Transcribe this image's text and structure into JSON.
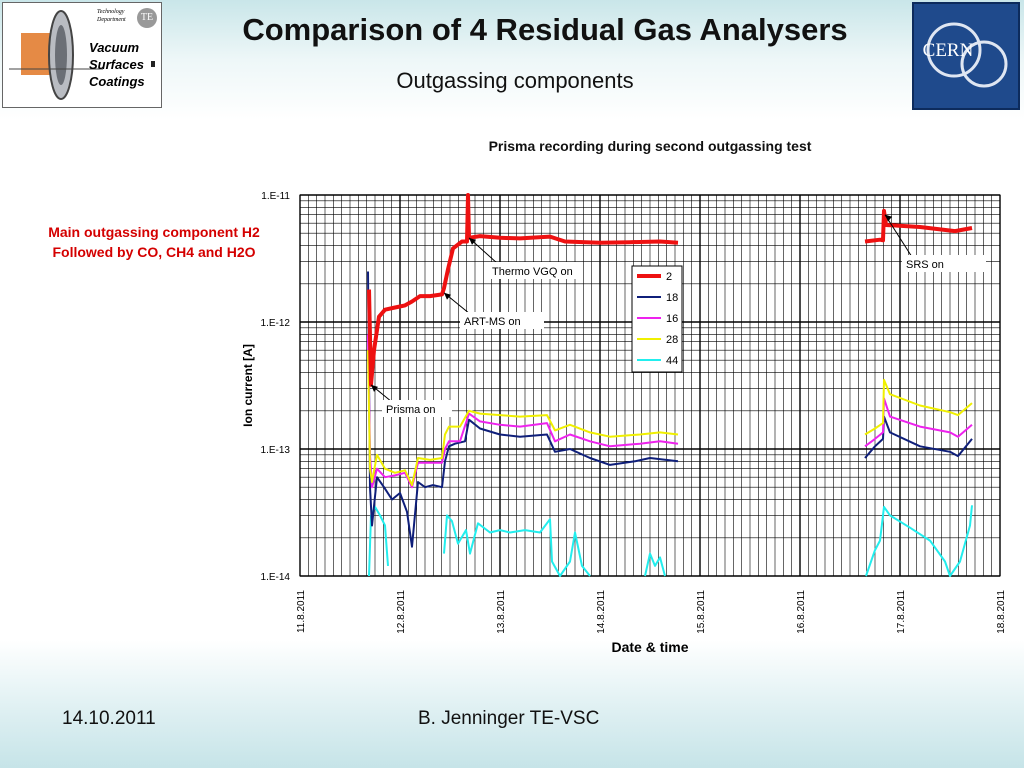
{
  "slide": {
    "title": "Comparison of 4 Residual Gas Analysers",
    "subtitle": "Outgassing components",
    "note_line1": "Main outgassing component H2",
    "note_line2": "Followed by CO, CH4 and H2O",
    "footer_date": "14.10.2011",
    "footer_author": "B. Jenninger TE-VSC"
  },
  "logos": {
    "left_text": [
      "Vacuum",
      "Surfaces",
      "Coatings"
    ],
    "left_small": [
      "Technology",
      "Department"
    ],
    "left_badge": "TE",
    "right_text": "CERN"
  },
  "colors": {
    "2": "#ee1111",
    "18": "#0f1f7a",
    "16": "#ee22ee",
    "28": "#f0f000",
    "44": "#22eeee",
    "note": "#d40000"
  },
  "chart_data": {
    "type": "line",
    "title": "Prisma recording during second outgassing test",
    "xlabel": "Date & time",
    "ylabel": "Ion current [A]",
    "yscale": "log",
    "ylim": [
      1e-14,
      1e-11
    ],
    "xlim": [
      "2011-08-11",
      "2011-08-18"
    ],
    "x_unit": "days",
    "x_ticks": [
      "11.8.2011",
      "12.8.2011",
      "13.8.2011",
      "14.8.2011",
      "15.8.2011",
      "16.8.2011",
      "17.8.2011",
      "18.8.2011"
    ],
    "y_ticks": [
      "1.E-11",
      "1.E-12",
      "1.E-13",
      "1.E-14"
    ],
    "grid": true,
    "legend_position": "right",
    "series": [
      {
        "name": "2",
        "segments": [
          [
            [
              11.69,
              1.8e-12
            ],
            [
              11.71,
              3.2e-13
            ],
            [
              11.74,
              6e-13
            ],
            [
              11.79,
              1.1e-12
            ],
            [
              11.85,
              1.25e-12
            ],
            [
              11.95,
              1.3e-12
            ],
            [
              12.05,
              1.35e-12
            ],
            [
              12.12,
              1.45e-12
            ],
            [
              12.2,
              1.6e-12
            ],
            [
              12.3,
              1.6e-12
            ],
            [
              12.42,
              1.65e-12
            ],
            [
              12.44,
              1.85e-12
            ],
            [
              12.48,
              2.6e-12
            ],
            [
              12.53,
              3.8e-12
            ],
            [
              12.62,
              4.3e-12
            ],
            [
              12.67,
              4.3e-12
            ],
            [
              12.68,
              1e-11
            ],
            [
              12.69,
              4.6e-12
            ],
            [
              12.8,
              4.75e-12
            ],
            [
              13.0,
              4.6e-12
            ],
            [
              13.2,
              4.55e-12
            ],
            [
              13.5,
              4.7e-12
            ],
            [
              13.65,
              4.3e-12
            ],
            [
              14.0,
              4.2e-12
            ],
            [
              14.3,
              4.25e-12
            ],
            [
              14.6,
              4.3e-12
            ],
            [
              14.78,
              4.2e-12
            ]
          ],
          [
            [
              16.65,
              4.3e-12
            ],
            [
              16.8,
              4.45e-12
            ],
            [
              16.83,
              4.4e-12
            ],
            [
              16.84,
              7.5e-12
            ],
            [
              16.86,
              5.8e-12
            ],
            [
              17.2,
              5.6e-12
            ],
            [
              17.55,
              5.2e-12
            ],
            [
              17.72,
              5.5e-12
            ]
          ]
        ]
      },
      {
        "name": "18",
        "segments": [
          [
            [
              11.68,
              2.5e-12
            ],
            [
              11.7,
              5e-14
            ],
            [
              11.72,
              2.5e-14
            ],
            [
              11.77,
              6e-14
            ],
            [
              11.84,
              5e-14
            ],
            [
              11.92,
              4e-14
            ],
            [
              12.0,
              4.5e-14
            ],
            [
              12.07,
              3.2e-14
            ],
            [
              12.12,
              1.7e-14
            ],
            [
              12.18,
              5.5e-14
            ],
            [
              12.25,
              5e-14
            ],
            [
              12.33,
              5.2e-14
            ],
            [
              12.42,
              5e-14
            ],
            [
              12.45,
              8e-14
            ],
            [
              12.49,
              1.05e-13
            ],
            [
              12.55,
              1.1e-13
            ],
            [
              12.65,
              1.15e-13
            ],
            [
              12.69,
              1.7e-13
            ],
            [
              12.8,
              1.45e-13
            ],
            [
              13.0,
              1.3e-13
            ],
            [
              13.2,
              1.25e-13
            ],
            [
              13.47,
              1.3e-13
            ],
            [
              13.55,
              9.5e-14
            ],
            [
              13.7,
              1e-13
            ],
            [
              13.9,
              8.5e-14
            ],
            [
              14.1,
              7.5e-14
            ],
            [
              14.35,
              8e-14
            ],
            [
              14.5,
              8.5e-14
            ],
            [
              14.78,
              8e-14
            ]
          ],
          [
            [
              16.65,
              8.5e-14
            ],
            [
              16.75,
              1.05e-13
            ],
            [
              16.83,
              1.2e-13
            ],
            [
              16.84,
              1.8e-13
            ],
            [
              16.9,
              1.35e-13
            ],
            [
              17.2,
              1.05e-13
            ],
            [
              17.5,
              9.5e-14
            ],
            [
              17.58,
              8.8e-14
            ],
            [
              17.72,
              1.2e-13
            ]
          ]
        ]
      },
      {
        "name": "16",
        "segments": [
          [
            [
              11.68,
              8e-13
            ],
            [
              11.7,
              9e-14
            ],
            [
              11.72,
              5e-14
            ],
            [
              11.77,
              7e-14
            ],
            [
              11.85,
              6e-14
            ],
            [
              11.95,
              6.2e-14
            ],
            [
              12.05,
              6.5e-14
            ],
            [
              12.12,
              5e-14
            ],
            [
              12.18,
              7.8e-14
            ],
            [
              12.3,
              7.8e-14
            ],
            [
              12.42,
              7.8e-14
            ],
            [
              12.45,
              1e-13
            ],
            [
              12.49,
              1.15e-13
            ],
            [
              12.6,
              1.15e-13
            ],
            [
              12.69,
              1.9e-13
            ],
            [
              12.8,
              1.65e-13
            ],
            [
              13.0,
              1.55e-13
            ],
            [
              13.2,
              1.5e-13
            ],
            [
              13.47,
              1.6e-13
            ],
            [
              13.55,
              1.15e-13
            ],
            [
              13.7,
              1.3e-13
            ],
            [
              13.9,
              1.15e-13
            ],
            [
              14.1,
              1.05e-13
            ],
            [
              14.4,
              1.1e-13
            ],
            [
              14.6,
              1.15e-13
            ],
            [
              14.78,
              1.1e-13
            ]
          ],
          [
            [
              16.65,
              1.05e-13
            ],
            [
              16.75,
              1.2e-13
            ],
            [
              16.83,
              1.35e-13
            ],
            [
              16.84,
              2.5e-13
            ],
            [
              16.9,
              1.8e-13
            ],
            [
              17.2,
              1.5e-13
            ],
            [
              17.5,
              1.35e-13
            ],
            [
              17.58,
              1.25e-13
            ],
            [
              17.72,
              1.55e-13
            ]
          ]
        ]
      },
      {
        "name": "28",
        "segments": [
          [
            [
              11.68,
              6e-13
            ],
            [
              11.7,
              7e-14
            ],
            [
              11.72,
              5.5e-14
            ],
            [
              11.77,
              9e-14
            ],
            [
              11.85,
              7e-14
            ],
            [
              11.95,
              6.5e-14
            ],
            [
              12.05,
              6.8e-14
            ],
            [
              12.12,
              5.2e-14
            ],
            [
              12.18,
              8.5e-14
            ],
            [
              12.3,
              8.2e-14
            ],
            [
              12.42,
              8.5e-14
            ],
            [
              12.45,
              1.3e-13
            ],
            [
              12.49,
              1.5e-13
            ],
            [
              12.6,
              1.5e-13
            ],
            [
              12.69,
              2e-13
            ],
            [
              12.8,
              1.9e-13
            ],
            [
              13.0,
              1.85e-13
            ],
            [
              13.2,
              1.8e-13
            ],
            [
              13.47,
              1.85e-13
            ],
            [
              13.55,
              1.4e-13
            ],
            [
              13.7,
              1.55e-13
            ],
            [
              13.9,
              1.35e-13
            ],
            [
              14.1,
              1.25e-13
            ],
            [
              14.4,
              1.3e-13
            ],
            [
              14.6,
              1.35e-13
            ],
            [
              14.78,
              1.3e-13
            ]
          ],
          [
            [
              16.65,
              1.3e-13
            ],
            [
              16.75,
              1.45e-13
            ],
            [
              16.83,
              1.6e-13
            ],
            [
              16.84,
              3.5e-13
            ],
            [
              16.9,
              2.7e-13
            ],
            [
              17.2,
              2.2e-13
            ],
            [
              17.5,
              1.95e-13
            ],
            [
              17.58,
              1.85e-13
            ],
            [
              17.72,
              2.3e-13
            ]
          ]
        ]
      },
      {
        "name": "44",
        "segments": [
          [
            [
              11.69,
              1e-14
            ],
            [
              11.71,
              3e-14
            ],
            [
              11.75,
              3.5e-14
            ],
            [
              11.8,
              3e-14
            ],
            [
              11.85,
              2.5e-14
            ],
            [
              11.88,
              1.2e-14
            ]
          ],
          [
            [
              12.44,
              1.5e-14
            ],
            [
              12.47,
              3e-14
            ],
            [
              12.52,
              2.7e-14
            ],
            [
              12.58,
              1.8e-14
            ],
            [
              12.66,
              2.3e-14
            ],
            [
              12.7,
              1.5e-14
            ],
            [
              12.78,
              2.6e-14
            ],
            [
              12.9,
              2.2e-14
            ],
            [
              13.0,
              2.3e-14
            ],
            [
              13.1,
              2.2e-14
            ],
            [
              13.25,
              2.3e-14
            ],
            [
              13.4,
              2.2e-14
            ],
            [
              13.5,
              2.8e-14
            ],
            [
              13.52,
              1.3e-14
            ],
            [
              13.6,
              1e-14
            ],
            [
              13.7,
              1.3e-14
            ],
            [
              13.75,
              2.2e-14
            ],
            [
              13.82,
              1.2e-14
            ],
            [
              13.9,
              1e-14
            ]
          ],
          [
            [
              14.45,
              1e-14
            ],
            [
              14.5,
              1.5e-14
            ],
            [
              14.55,
              1.2e-14
            ],
            [
              14.6,
              1.4e-14
            ],
            [
              14.65,
              1e-14
            ]
          ],
          [
            [
              16.66,
              1e-14
            ],
            [
              16.75,
              1.6e-14
            ],
            [
              16.8,
              1.9e-14
            ],
            [
              16.84,
              3.5e-14
            ],
            [
              16.9,
              3e-14
            ],
            [
              17.1,
              2.4e-14
            ],
            [
              17.3,
              1.9e-14
            ],
            [
              17.45,
              1.3e-14
            ],
            [
              17.5,
              1e-14
            ],
            [
              17.6,
              1.3e-14
            ],
            [
              17.7,
              2.5e-14
            ],
            [
              17.72,
              3.6e-14
            ]
          ]
        ]
      }
    ],
    "annotations": [
      {
        "text": "Prisma on",
        "x": 11.71,
        "y": 3.2e-13
      },
      {
        "text": "ART-MS on",
        "x": 12.44,
        "y": 1.7e-12
      },
      {
        "text": "Thermo VGQ on",
        "x": 12.69,
        "y": 4.6e-12
      },
      {
        "text": "SRS on",
        "x": 16.85,
        "y": 7e-12
      }
    ]
  }
}
